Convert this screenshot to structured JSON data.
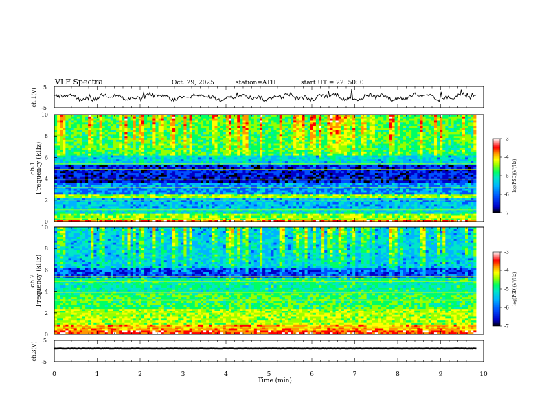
{
  "header": {
    "title": "VLF  Spectra",
    "date": "Oct. 29, 2025",
    "station": "station=ATH",
    "start": "start  UT  =    22: 50: 0"
  },
  "chart_data": {
    "type": "heatmap",
    "x_axis": {
      "label": "Time  (min)",
      "range": [
        0,
        10
      ],
      "ticks": [
        "0",
        "1",
        "2",
        "3",
        "4",
        "5",
        "6",
        "7",
        "8",
        "9",
        "10"
      ],
      "data_end": 9.83
    },
    "panels": [
      {
        "name": "ch1-waveform",
        "ylabel": "ch.1(V)",
        "ylim": [
          -5,
          5
        ],
        "yticks": [
          "5",
          "-5"
        ],
        "trace_level": 0,
        "trace_amplitude": 2.5
      },
      {
        "name": "ch1-spectrogram",
        "ylabel_channel": "ch.1",
        "ylabel": "Frequency  (kHz)",
        "ylim": [
          0,
          10
        ],
        "yticks": [
          "0",
          "2",
          "4",
          "6",
          "8",
          "10"
        ],
        "colorbar_label": "log(PSD)(V²/Hz)",
        "colorbar_ticks": [
          "-3",
          "-4",
          "-5",
          "-6",
          "-7"
        ]
      },
      {
        "name": "ch2-spectrogram",
        "ylabel_channel": "ch.2",
        "ylabel": "Frequency  (kHz)",
        "ylim": [
          0,
          10
        ],
        "yticks": [
          "0",
          "2",
          "4",
          "6",
          "8",
          "10"
        ],
        "colorbar_label": "log(PSD)(V²/Hz)",
        "colorbar_ticks": [
          "-3",
          "-4",
          "-5",
          "-6",
          "-7"
        ]
      },
      {
        "name": "ch3-waveform",
        "ylabel": "ch.3(V)",
        "ylim": [
          -5,
          5
        ],
        "yticks": [
          "5",
          "-5"
        ],
        "trace_level": 1.2,
        "trace_amplitude": 0.15
      }
    ],
    "colorscale": {
      "min": -7,
      "max": -3,
      "colors": [
        "#000000",
        "#0000c8",
        "#0050ff",
        "#00b4ff",
        "#00e6c8",
        "#00ff64",
        "#96ff00",
        "#ffff00",
        "#ff9600",
        "#ff0000",
        "#ffffff"
      ]
    }
  }
}
